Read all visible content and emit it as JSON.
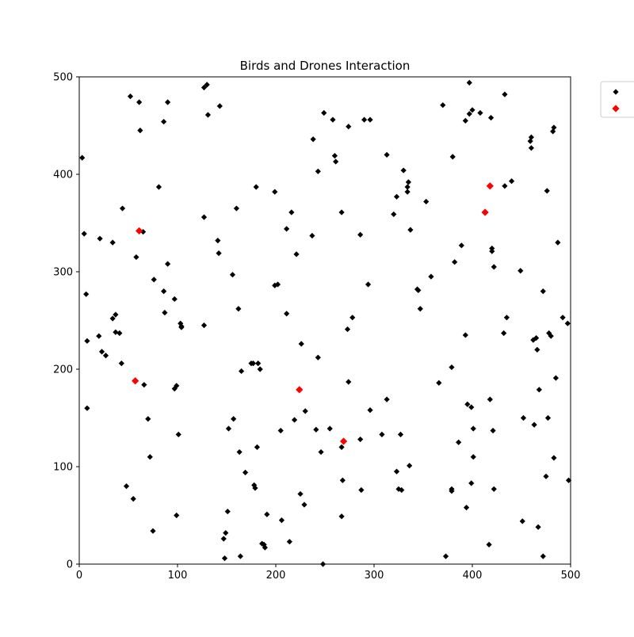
{
  "chart_data": {
    "type": "scatter",
    "title": "Birds and Drones Interaction",
    "xlabel": "",
    "ylabel": "",
    "xlim": [
      0,
      500
    ],
    "ylim": [
      0,
      500
    ],
    "x_ticks": [
      "0",
      "100",
      "200",
      "300",
      "400",
      "500"
    ],
    "y_ticks": [
      "0",
      "100",
      "200",
      "300",
      "400",
      "500"
    ],
    "grid": false,
    "legend_position": "upper right, outside plot",
    "series": [
      {
        "marker": "diamond",
        "color": "#000000",
        "points": [
          [
            3,
            417
          ],
          [
            5,
            339
          ],
          [
            7,
            277
          ],
          [
            8,
            229
          ],
          [
            8,
            160
          ],
          [
            20,
            234
          ],
          [
            21,
            334
          ],
          [
            23,
            218
          ],
          [
            27,
            214
          ],
          [
            34,
            330
          ],
          [
            34,
            252
          ],
          [
            37,
            256
          ],
          [
            37,
            238
          ],
          [
            41,
            237
          ],
          [
            43,
            206
          ],
          [
            44,
            365
          ],
          [
            48,
            80
          ],
          [
            52,
            480
          ],
          [
            55,
            67
          ],
          [
            58,
            315
          ],
          [
            61,
            474
          ],
          [
            62,
            445
          ],
          [
            65,
            341
          ],
          [
            66,
            184
          ],
          [
            70,
            149
          ],
          [
            72,
            110
          ],
          [
            75,
            34
          ],
          [
            76,
            292
          ],
          [
            81,
            387
          ],
          [
            86,
            280
          ],
          [
            86,
            454
          ],
          [
            87,
            258
          ],
          [
            90,
            474
          ],
          [
            90,
            308
          ],
          [
            97,
            272
          ],
          [
            97,
            180
          ],
          [
            99,
            183
          ],
          [
            99,
            50
          ],
          [
            101,
            133
          ],
          [
            103,
            247
          ],
          [
            104,
            243
          ],
          [
            104,
            244
          ],
          [
            127,
            489
          ],
          [
            127,
            356
          ],
          [
            127,
            245
          ],
          [
            130,
            492
          ],
          [
            131,
            461
          ],
          [
            141,
            332
          ],
          [
            142,
            319
          ],
          [
            143,
            470
          ],
          [
            147,
            26
          ],
          [
            148,
            6
          ],
          [
            149,
            32
          ],
          [
            151,
            54
          ],
          [
            152,
            139
          ],
          [
            156,
            297
          ],
          [
            157,
            149
          ],
          [
            160,
            365
          ],
          [
            162,
            262
          ],
          [
            163,
            115
          ],
          [
            164,
            8
          ],
          [
            165,
            198
          ],
          [
            169,
            94
          ],
          [
            175,
            206
          ],
          [
            177,
            206
          ],
          [
            178,
            81
          ],
          [
            179,
            78
          ],
          [
            180,
            387
          ],
          [
            181,
            120
          ],
          [
            182,
            206
          ],
          [
            184,
            200
          ],
          [
            186,
            21
          ],
          [
            188,
            20
          ],
          [
            189,
            17
          ],
          [
            191,
            51
          ],
          [
            199,
            382
          ],
          [
            199,
            286
          ],
          [
            202,
            287
          ],
          [
            205,
            137
          ],
          [
            206,
            45
          ],
          [
            211,
            344
          ],
          [
            211,
            257
          ],
          [
            214,
            23
          ],
          [
            216,
            361
          ],
          [
            219,
            148
          ],
          [
            221,
            318
          ],
          [
            225,
            72
          ],
          [
            226,
            226
          ],
          [
            229,
            61
          ],
          [
            230,
            157
          ],
          [
            237,
            337
          ],
          [
            238,
            436
          ],
          [
            241,
            138
          ],
          [
            243,
            403
          ],
          [
            243,
            212
          ],
          [
            246,
            115
          ],
          [
            248,
            0
          ],
          [
            249,
            463
          ],
          [
            255,
            139
          ],
          [
            258,
            456
          ],
          [
            260,
            419
          ],
          [
            261,
            413
          ],
          [
            267,
            361
          ],
          [
            267,
            120
          ],
          [
            267,
            49
          ],
          [
            268,
            86
          ],
          [
            273,
            241
          ],
          [
            274,
            449
          ],
          [
            274,
            187
          ],
          [
            278,
            253
          ],
          [
            286,
            128
          ],
          [
            286,
            338
          ],
          [
            287,
            76
          ],
          [
            290,
            456
          ],
          [
            294,
            287
          ],
          [
            296,
            456
          ],
          [
            296,
            158
          ],
          [
            308,
            133
          ],
          [
            313,
            420
          ],
          [
            313,
            169
          ],
          [
            320,
            359
          ],
          [
            323,
            377
          ],
          [
            323,
            95
          ],
          [
            325,
            77
          ],
          [
            327,
            133
          ],
          [
            328,
            76
          ],
          [
            330,
            404
          ],
          [
            334,
            387
          ],
          [
            334,
            382
          ],
          [
            335,
            392
          ],
          [
            336,
            101
          ],
          [
            337,
            343
          ],
          [
            344,
            282
          ],
          [
            345,
            281
          ],
          [
            347,
            262
          ],
          [
            353,
            372
          ],
          [
            358,
            295
          ],
          [
            366,
            186
          ],
          [
            370,
            471
          ],
          [
            373,
            8
          ],
          [
            379,
            77
          ],
          [
            379,
            202
          ],
          [
            379,
            75
          ],
          [
            380,
            418
          ],
          [
            382,
            310
          ],
          [
            386,
            125
          ],
          [
            389,
            327
          ],
          [
            393,
            455
          ],
          [
            393,
            235
          ],
          [
            394,
            58
          ],
          [
            395,
            164
          ],
          [
            397,
            494
          ],
          [
            397,
            462
          ],
          [
            399,
            161
          ],
          [
            399,
            83
          ],
          [
            400,
            466
          ],
          [
            401,
            139
          ],
          [
            401,
            110
          ],
          [
            408,
            463
          ],
          [
            417,
            20
          ],
          [
            418,
            169
          ],
          [
            419,
            458
          ],
          [
            420,
            324
          ],
          [
            420,
            321
          ],
          [
            421,
            137
          ],
          [
            422,
            305
          ],
          [
            422,
            77
          ],
          [
            432,
            237
          ],
          [
            433,
            388
          ],
          [
            433,
            482
          ],
          [
            435,
            253
          ],
          [
            440,
            393
          ],
          [
            449,
            301
          ],
          [
            451,
            44
          ],
          [
            452,
            150
          ],
          [
            459,
            434
          ],
          [
            460,
            427
          ],
          [
            460,
            438
          ],
          [
            462,
            230
          ],
          [
            463,
            143
          ],
          [
            465,
            232
          ],
          [
            466,
            220
          ],
          [
            467,
            38
          ],
          [
            468,
            179
          ],
          [
            472,
            8
          ],
          [
            472,
            280
          ],
          [
            475,
            90
          ],
          [
            476,
            383
          ],
          [
            477,
            150
          ],
          [
            478,
            237
          ],
          [
            480,
            234
          ],
          [
            482,
            444
          ],
          [
            483,
            448
          ],
          [
            483,
            109
          ],
          [
            485,
            191
          ],
          [
            487,
            330
          ],
          [
            492,
            253
          ],
          [
            497,
            247
          ],
          [
            498,
            86
          ]
        ]
      },
      {
        "marker": "diamond",
        "color": "#ff0000",
        "points": [
          [
            57,
            188
          ],
          [
            61,
            342
          ],
          [
            224,
            179
          ],
          [
            269,
            126
          ],
          [
            413,
            361
          ],
          [
            418,
            388
          ]
        ]
      }
    ]
  }
}
